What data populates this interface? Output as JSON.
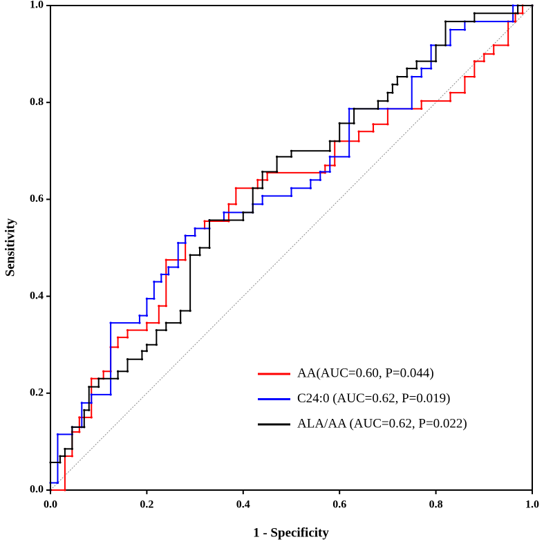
{
  "chart_data": {
    "type": "line",
    "xlabel": "1 - Specificity",
    "ylabel": "Sensitivity",
    "xlim": [
      0,
      1
    ],
    "ylim": [
      0,
      1
    ],
    "xticks": [
      {
        "value": 0,
        "label": "0.0"
      },
      0.2,
      0.4,
      0.6,
      0.8,
      {
        "value": 1,
        "label": "1.0"
      }
    ],
    "yticks": [
      {
        "value": 0,
        "label": "0.0"
      },
      0.2,
      0.4,
      0.6,
      0.8,
      {
        "value": 1,
        "label": "1.0"
      }
    ],
    "legend": "lower right",
    "reference_line": true,
    "series": [
      {
        "name": "AA(AUC=0.60, P=0.044)",
        "color": "#ff0000",
        "x": [
          0,
          0.03,
          0.03,
          0.045,
          0.045,
          0.06,
          0.06,
          0.085,
          0.085,
          0.11,
          0.11,
          0.125,
          0.125,
          0.14,
          0.14,
          0.16,
          0.16,
          0.2,
          0.2,
          0.225,
          0.225,
          0.24,
          0.24,
          0.28,
          0.28,
          0.3,
          0.3,
          0.32,
          0.32,
          0.37,
          0.37,
          0.385,
          0.385,
          0.43,
          0.43,
          0.45,
          0.45,
          0.57,
          0.57,
          0.59,
          0.59,
          0.64,
          0.64,
          0.67,
          0.67,
          0.7,
          0.7,
          0.77,
          0.77,
          0.83,
          0.83,
          0.86,
          0.86,
          0.88,
          0.88,
          0.9,
          0.9,
          0.92,
          0.92,
          0.95,
          0.95,
          0.965,
          0.965,
          0.98,
          0.98,
          1
        ],
        "values": [
          0,
          0,
          0.07,
          0.07,
          0.12,
          0.12,
          0.15,
          0.15,
          0.23,
          0.23,
          0.245,
          0.245,
          0.295,
          0.295,
          0.315,
          0.315,
          0.33,
          0.33,
          0.345,
          0.345,
          0.38,
          0.38,
          0.475,
          0.475,
          0.525,
          0.525,
          0.54,
          0.54,
          0.555,
          0.555,
          0.59,
          0.59,
          0.623,
          0.623,
          0.64,
          0.64,
          0.655,
          0.655,
          0.67,
          0.67,
          0.72,
          0.72,
          0.74,
          0.74,
          0.755,
          0.755,
          0.787,
          0.787,
          0.803,
          0.803,
          0.82,
          0.82,
          0.853,
          0.853,
          0.885,
          0.885,
          0.9,
          0.9,
          0.918,
          0.918,
          0.967,
          0.967,
          0.984,
          0.984,
          1,
          1
        ]
      },
      {
        "name": "C24:0 (AUC=0.62, P=0.019)",
        "color": "#0000ff",
        "x": [
          0,
          0,
          0.015,
          0.015,
          0.045,
          0.045,
          0.065,
          0.065,
          0.085,
          0.085,
          0.125,
          0.125,
          0.185,
          0.185,
          0.2,
          0.2,
          0.215,
          0.215,
          0.23,
          0.23,
          0.245,
          0.245,
          0.265,
          0.265,
          0.28,
          0.28,
          0.3,
          0.3,
          0.33,
          0.33,
          0.36,
          0.36,
          0.42,
          0.42,
          0.44,
          0.44,
          0.5,
          0.5,
          0.54,
          0.54,
          0.56,
          0.56,
          0.58,
          0.58,
          0.62,
          0.62,
          0.75,
          0.75,
          0.77,
          0.77,
          0.79,
          0.79,
          0.83,
          0.83,
          0.86,
          0.86,
          0.96,
          0.96,
          1
        ],
        "values": [
          0,
          0.015,
          0.015,
          0.115,
          0.115,
          0.13,
          0.13,
          0.18,
          0.18,
          0.197,
          0.197,
          0.345,
          0.345,
          0.36,
          0.36,
          0.395,
          0.395,
          0.43,
          0.43,
          0.445,
          0.445,
          0.46,
          0.46,
          0.51,
          0.51,
          0.525,
          0.525,
          0.54,
          0.54,
          0.557,
          0.557,
          0.573,
          0.573,
          0.59,
          0.59,
          0.607,
          0.607,
          0.623,
          0.623,
          0.64,
          0.64,
          0.657,
          0.657,
          0.688,
          0.688,
          0.787,
          0.787,
          0.853,
          0.853,
          0.87,
          0.87,
          0.918,
          0.918,
          0.95,
          0.95,
          0.967,
          0.967,
          1,
          1
        ]
      },
      {
        "name": "ALA/AA (AUC=0.62, P=0.022)",
        "color": "#000000",
        "x": [
          0,
          0,
          0.02,
          0.02,
          0.03,
          0.03,
          0.045,
          0.045,
          0.07,
          0.07,
          0.08,
          0.08,
          0.1,
          0.1,
          0.14,
          0.14,
          0.16,
          0.16,
          0.19,
          0.19,
          0.2,
          0.2,
          0.22,
          0.22,
          0.24,
          0.24,
          0.27,
          0.27,
          0.29,
          0.29,
          0.31,
          0.31,
          0.33,
          0.33,
          0.4,
          0.4,
          0.42,
          0.42,
          0.44,
          0.44,
          0.47,
          0.47,
          0.5,
          0.5,
          0.58,
          0.58,
          0.6,
          0.6,
          0.63,
          0.63,
          0.68,
          0.68,
          0.7,
          0.7,
          0.71,
          0.71,
          0.72,
          0.72,
          0.74,
          0.74,
          0.76,
          0.76,
          0.8,
          0.8,
          0.82,
          0.82,
          0.88,
          0.88,
          0.97,
          0.97,
          1
        ],
        "values": [
          0,
          0.057,
          0.057,
          0.07,
          0.07,
          0.085,
          0.085,
          0.13,
          0.13,
          0.165,
          0.165,
          0.213,
          0.213,
          0.23,
          0.23,
          0.245,
          0.245,
          0.27,
          0.27,
          0.287,
          0.287,
          0.3,
          0.3,
          0.33,
          0.33,
          0.345,
          0.345,
          0.37,
          0.37,
          0.485,
          0.485,
          0.5,
          0.5,
          0.557,
          0.557,
          0.573,
          0.573,
          0.623,
          0.623,
          0.657,
          0.657,
          0.688,
          0.688,
          0.7,
          0.7,
          0.72,
          0.72,
          0.757,
          0.757,
          0.787,
          0.787,
          0.803,
          0.803,
          0.82,
          0.82,
          0.837,
          0.837,
          0.853,
          0.853,
          0.87,
          0.87,
          0.885,
          0.885,
          0.918,
          0.918,
          0.967,
          0.967,
          0.984,
          0.984,
          1,
          1
        ]
      }
    ]
  }
}
